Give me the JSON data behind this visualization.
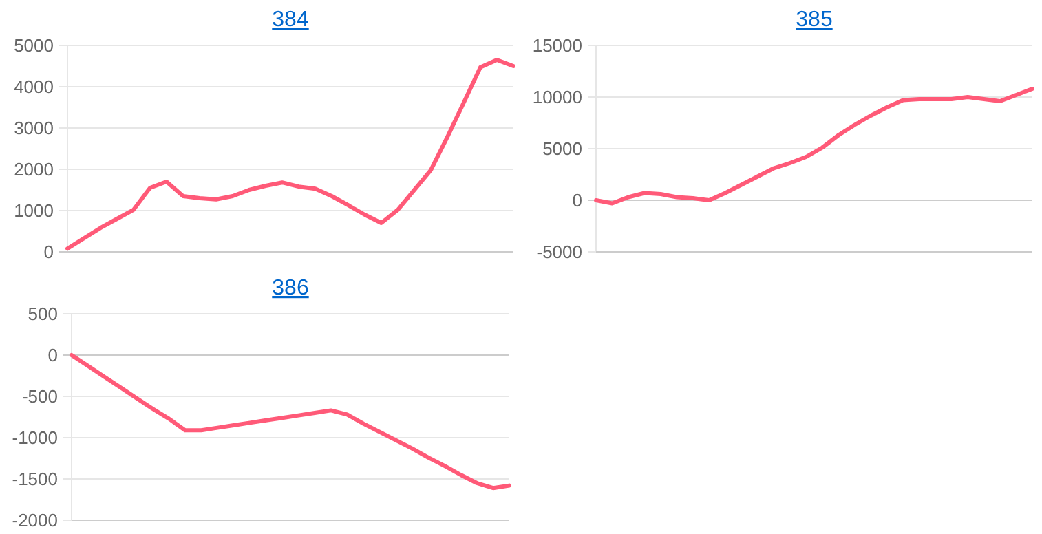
{
  "chart_data": [
    {
      "type": "line",
      "title": "384",
      "categories": [
        null,
        null,
        null,
        null,
        null,
        null,
        null,
        null,
        null,
        null,
        null,
        null,
        null,
        null,
        null,
        null,
        null,
        null,
        null,
        null,
        null,
        null,
        null,
        null,
        null,
        null,
        null,
        null
      ],
      "series": [
        {
          "color": "#ff5a78",
          "values": [
            80,
            330,
            580,
            800,
            1020,
            1550,
            1700,
            1350,
            1300,
            1270,
            1350,
            1500,
            1600,
            1680,
            1580,
            1530,
            1350,
            1130,
            900,
            700,
            1020,
            1500,
            1980,
            2780,
            3620,
            4470,
            4650,
            4500
          ]
        }
      ],
      "ylim": [
        0,
        5000
      ],
      "yticks": [
        0,
        1000,
        2000,
        3000,
        4000,
        5000
      ],
      "grid": "y",
      "marker": "none"
    },
    {
      "type": "line",
      "title": "385",
      "categories": [
        null,
        null,
        null,
        null,
        null,
        null,
        null,
        null,
        null,
        null,
        null,
        null,
        null,
        null,
        null,
        null,
        null,
        null,
        null,
        null,
        null,
        null,
        null,
        null,
        null,
        null,
        null,
        null
      ],
      "series": [
        {
          "color": "#ff5a78",
          "values": [
            0,
            -300,
            300,
            700,
            600,
            300,
            200,
            0,
            700,
            1500,
            2300,
            3100,
            3600,
            4200,
            5100,
            6300,
            7300,
            8200,
            9000,
            9700,
            9800,
            9800,
            9800,
            10000,
            9800,
            9600,
            10200,
            10800
          ]
        }
      ],
      "ylim": [
        -5000,
        15000
      ],
      "yticks": [
        -5000,
        0,
        5000,
        10000,
        15000
      ],
      "grid": "y",
      "marker": "none"
    },
    {
      "type": "line",
      "title": "386",
      "categories": [
        null,
        null,
        null,
        null,
        null,
        null,
        null,
        null,
        null,
        null,
        null,
        null,
        null,
        null,
        null,
        null,
        null,
        null,
        null,
        null,
        null,
        null,
        null,
        null,
        null,
        null,
        null,
        null
      ],
      "series": [
        {
          "color": "#ff5a78",
          "values": [
            0,
            -130,
            -260,
            -390,
            -520,
            -650,
            -770,
            -910,
            -910,
            -880,
            -850,
            -820,
            -790,
            -760,
            -730,
            -700,
            -670,
            -720,
            -830,
            -930,
            -1030,
            -1130,
            -1240,
            -1340,
            -1450,
            -1550,
            -1610,
            -1580
          ]
        }
      ],
      "ylim": [
        -2000,
        500
      ],
      "yticks": [
        -2000,
        -1500,
        -1000,
        -500,
        0,
        500
      ],
      "grid": "y",
      "marker": "none"
    }
  ]
}
